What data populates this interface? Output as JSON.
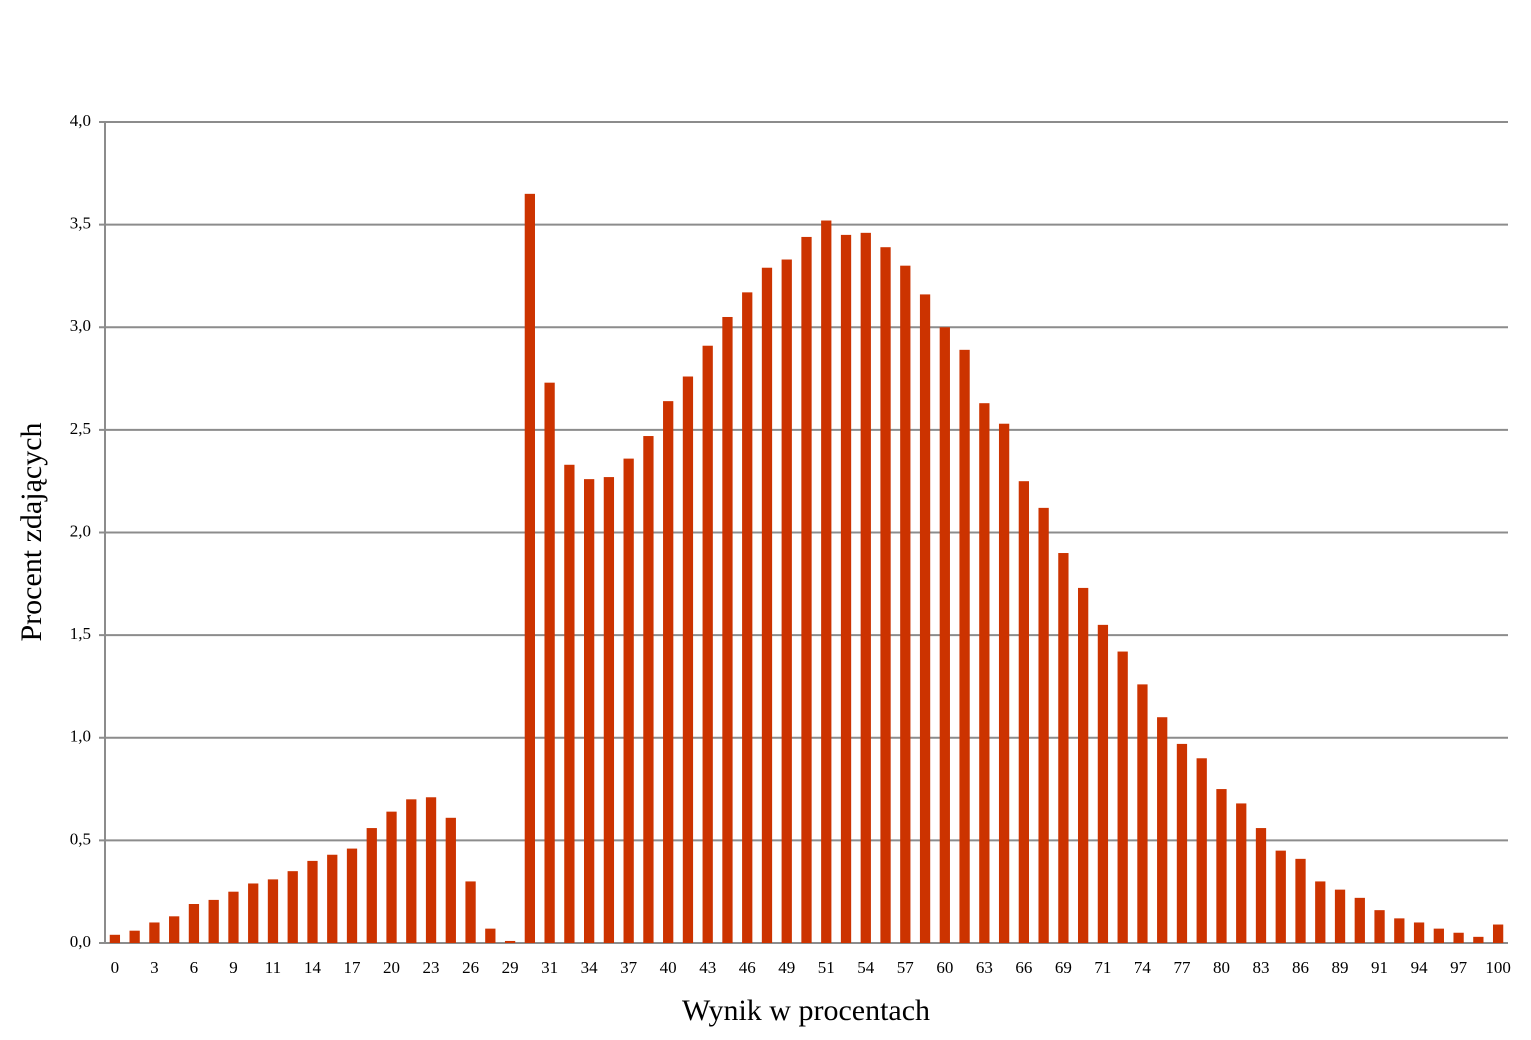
{
  "chart_data": {
    "type": "bar",
    "x_label": "Wynik w procentach",
    "y_label": "Procent zdających",
    "categories": [
      "0",
      null,
      "3",
      null,
      "6",
      null,
      "9",
      null,
      "11",
      null,
      "14",
      null,
      "17",
      null,
      "20",
      null,
      "23",
      null,
      "26",
      null,
      "29",
      null,
      "31",
      null,
      "34",
      null,
      "37",
      null,
      "40",
      null,
      "43",
      null,
      "46",
      null,
      "49",
      null,
      "51",
      null,
      "54",
      null,
      "57",
      null,
      "60",
      null,
      "63",
      null,
      "66",
      null,
      "69",
      null,
      "71",
      null,
      "74",
      null,
      "77",
      null,
      "80",
      null,
      "83",
      null,
      "86",
      null,
      "89",
      null,
      "91",
      null,
      "94",
      null,
      "97",
      null,
      "100"
    ],
    "values": [
      0.04,
      0.06,
      0.1,
      0.13,
      0.19,
      0.21,
      0.25,
      0.29,
      0.31,
      0.35,
      0.4,
      0.43,
      0.46,
      0.56,
      0.64,
      0.7,
      0.71,
      0.61,
      0.3,
      0.07,
      0.01,
      3.65,
      2.73,
      2.33,
      2.26,
      2.27,
      2.36,
      2.47,
      2.64,
      2.76,
      2.91,
      3.05,
      3.17,
      3.29,
      3.33,
      3.44,
      3.52,
      3.45,
      3.46,
      3.39,
      3.3,
      3.16,
      3.0,
      2.89,
      2.63,
      2.53,
      2.25,
      2.12,
      1.9,
      1.73,
      1.55,
      1.42,
      1.26,
      1.1,
      0.97,
      0.9,
      0.75,
      0.68,
      0.56,
      0.45,
      0.41,
      0.3,
      0.26,
      0.22,
      0.16,
      0.12,
      0.1,
      0.07,
      0.05,
      0.03,
      0.09
    ],
    "color": "#cc3300",
    "ylim": [
      0,
      4
    ],
    "yticks": [
      {
        "value": 0,
        "label": "0,0"
      },
      {
        "value": 0.5,
        "label": "0,5"
      },
      {
        "value": 1,
        "label": "1,0"
      },
      {
        "value": 1.5,
        "label": "1,5"
      },
      {
        "value": 2,
        "label": "2,0"
      },
      {
        "value": 2.5,
        "label": "2,5"
      },
      {
        "value": 3,
        "label": "3,0"
      },
      {
        "value": 3.5,
        "label": "3,5"
      },
      {
        "value": 4,
        "label": "4,0"
      }
    ],
    "grid": true
  }
}
